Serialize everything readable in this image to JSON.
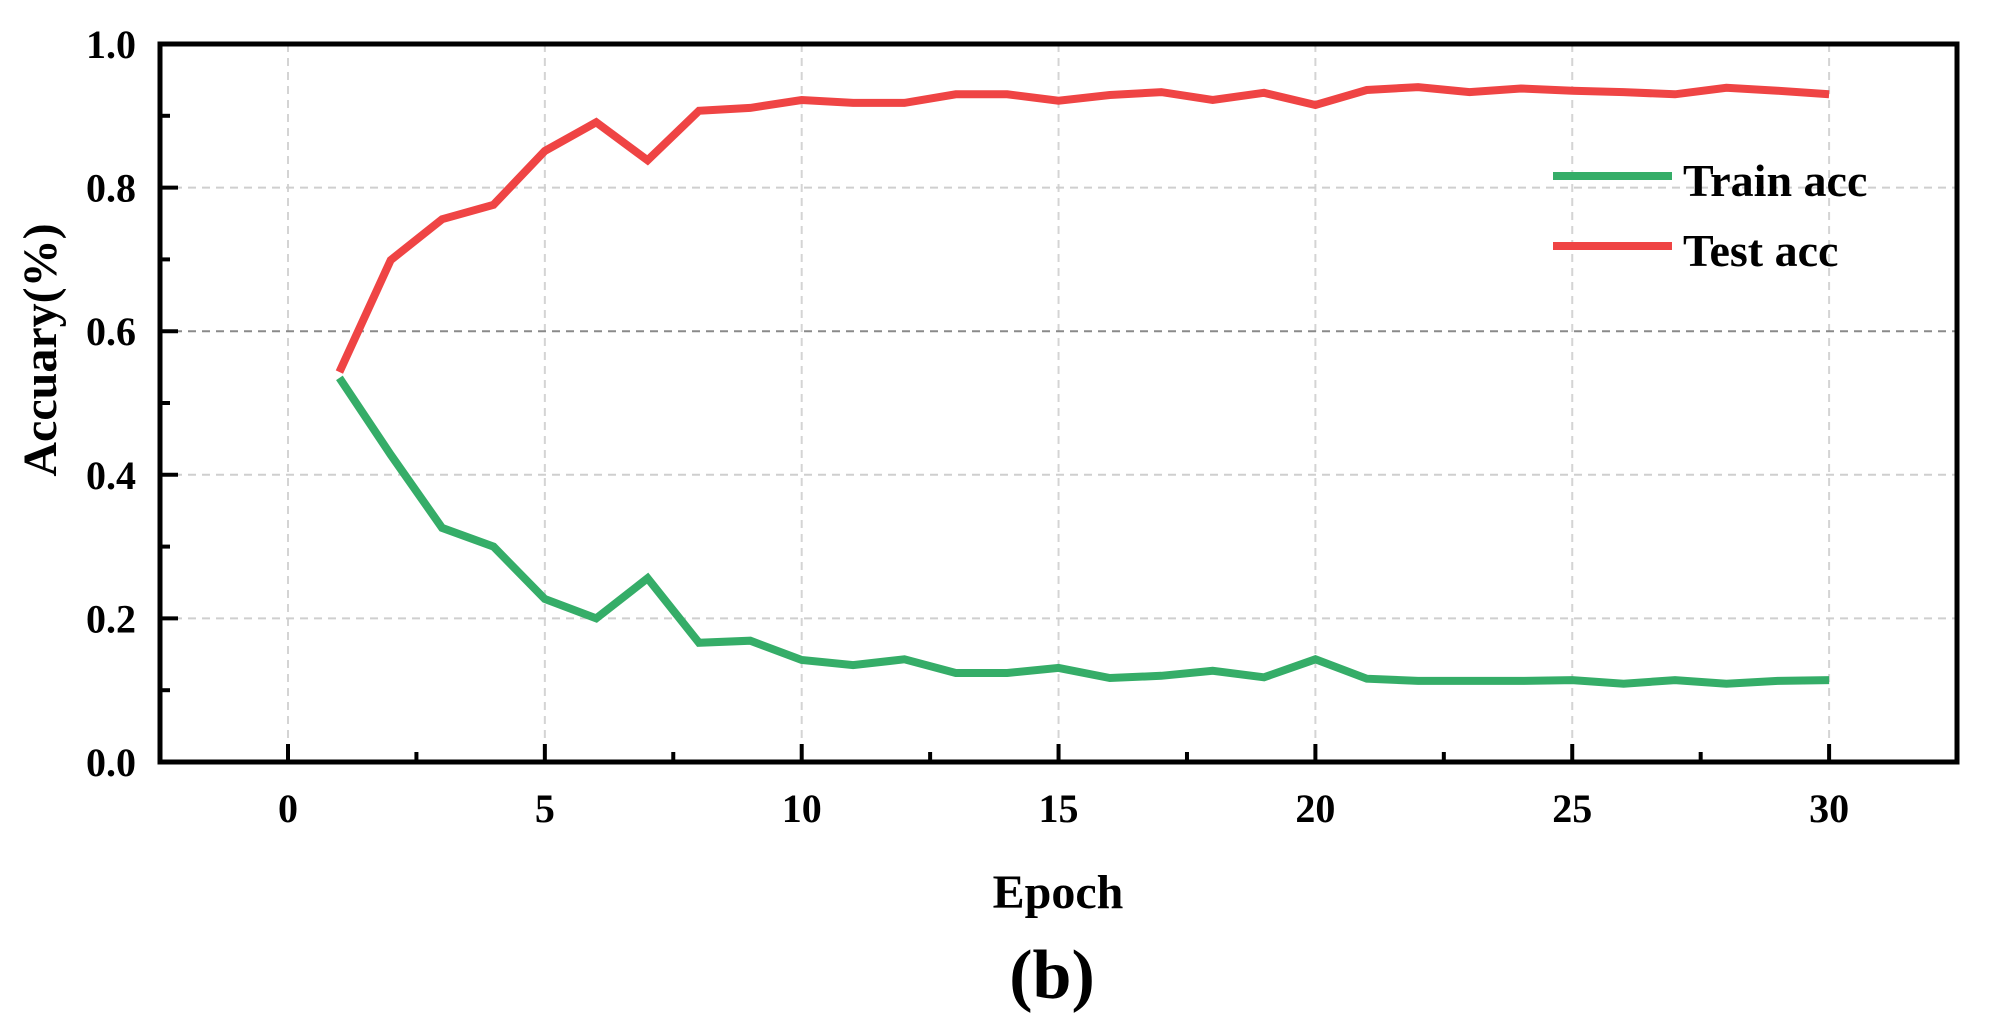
{
  "chart_data": {
    "type": "line",
    "title": "",
    "caption": "(b)",
    "xlabel": "Epoch",
    "ylabel": "Accuary(%)",
    "xlim": [
      -2.5,
      32.7
    ],
    "ylim": [
      0.0,
      1.0
    ],
    "xticks": [
      0,
      5,
      10,
      15,
      20,
      25,
      30
    ],
    "xtick_labels": [
      "0",
      "5",
      "10",
      "15",
      "20",
      "25",
      "30"
    ],
    "yticks": [
      0.0,
      0.2,
      0.4,
      0.6,
      0.8,
      1.0
    ],
    "ytick_labels": [
      "0.0",
      "0.2",
      "0.4",
      "0.6",
      "0.8",
      "1.0"
    ],
    "grid": true,
    "legend_position": "upper right",
    "x": [
      1,
      2,
      3,
      4,
      5,
      6,
      7,
      8,
      9,
      10,
      11,
      12,
      13,
      14,
      15,
      16,
      17,
      18,
      19,
      20,
      21,
      22,
      23,
      24,
      25,
      26,
      27,
      28,
      29,
      30
    ],
    "series": [
      {
        "name": "Train acc",
        "color": "#35ad68",
        "values": [
          0.535,
          0.428,
          0.326,
          0.3,
          0.227,
          0.2,
          0.256,
          0.166,
          0.169,
          0.142,
          0.135,
          0.143,
          0.124,
          0.124,
          0.131,
          0.117,
          0.12,
          0.127,
          0.118,
          0.143,
          0.116,
          0.113,
          0.113,
          0.113,
          0.114,
          0.109,
          0.114,
          0.109,
          0.113,
          0.114
        ]
      },
      {
        "name": "Test acc",
        "color": "#ef4444",
        "values": [
          0.543,
          0.699,
          0.756,
          0.776,
          0.851,
          0.891,
          0.838,
          0.907,
          0.911,
          0.922,
          0.918,
          0.918,
          0.93,
          0.93,
          0.921,
          0.929,
          0.933,
          0.922,
          0.932,
          0.915,
          0.936,
          0.94,
          0.933,
          0.938,
          0.935,
          0.933,
          0.93,
          0.939,
          0.935,
          0.93
        ]
      }
    ]
  },
  "legend": {
    "items": [
      {
        "label": "Train acc",
        "color": "#35ad68"
      },
      {
        "label": "Test acc",
        "color": "#ef4444"
      }
    ]
  }
}
